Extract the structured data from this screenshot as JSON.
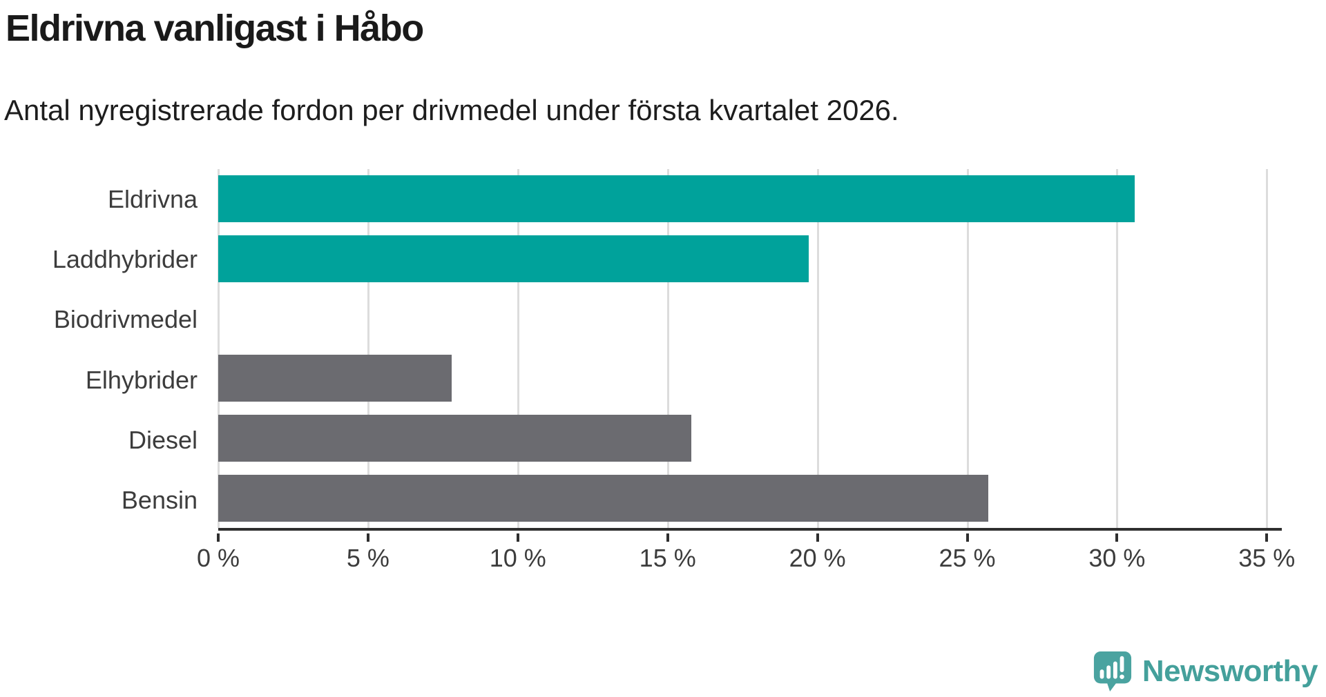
{
  "header": {
    "title": "Eldrivna vanligast i Håbo",
    "subtitle": "Antal nyregistrerade fordon per drivmedel under första kvartalet 2026."
  },
  "chart_data": {
    "type": "bar",
    "orientation": "horizontal",
    "title": "Eldrivna vanligast i Håbo",
    "subtitle": "Antal nyregistrerade fordon per drivmedel under första kvartalet 2026.",
    "categories": [
      "Eldrivna",
      "Laddhybrider",
      "Biodrivmedel",
      "Elhybrider",
      "Diesel",
      "Bensin"
    ],
    "values": [
      30.6,
      19.7,
      0,
      7.8,
      15.8,
      25.7
    ],
    "unit": "%",
    "bar_colors": [
      "#00a29b",
      "#00a29b",
      "#00a29b",
      "#6b6b70",
      "#6b6b70",
      "#6b6b70"
    ],
    "x_ticks": [
      0,
      5,
      10,
      15,
      20,
      25,
      30,
      35
    ],
    "x_tick_labels": [
      "0 %",
      "5 %",
      "10 %",
      "15 %",
      "20 %",
      "25 %",
      "30 %",
      "35 %"
    ],
    "xlim": [
      0,
      35.5
    ],
    "grid": true,
    "legend": "none",
    "colors": {
      "highlight": "#00a29b",
      "neutral": "#6b6b70",
      "gridline": "#dcdcdc",
      "axis": "#2f2f2f",
      "text": "#3c3c3c"
    }
  },
  "footer": {
    "brand": "Newsworthy",
    "brand_color": "#44a09b",
    "logo_icon": "newsworthy-speech-bubble-chart-icon"
  }
}
